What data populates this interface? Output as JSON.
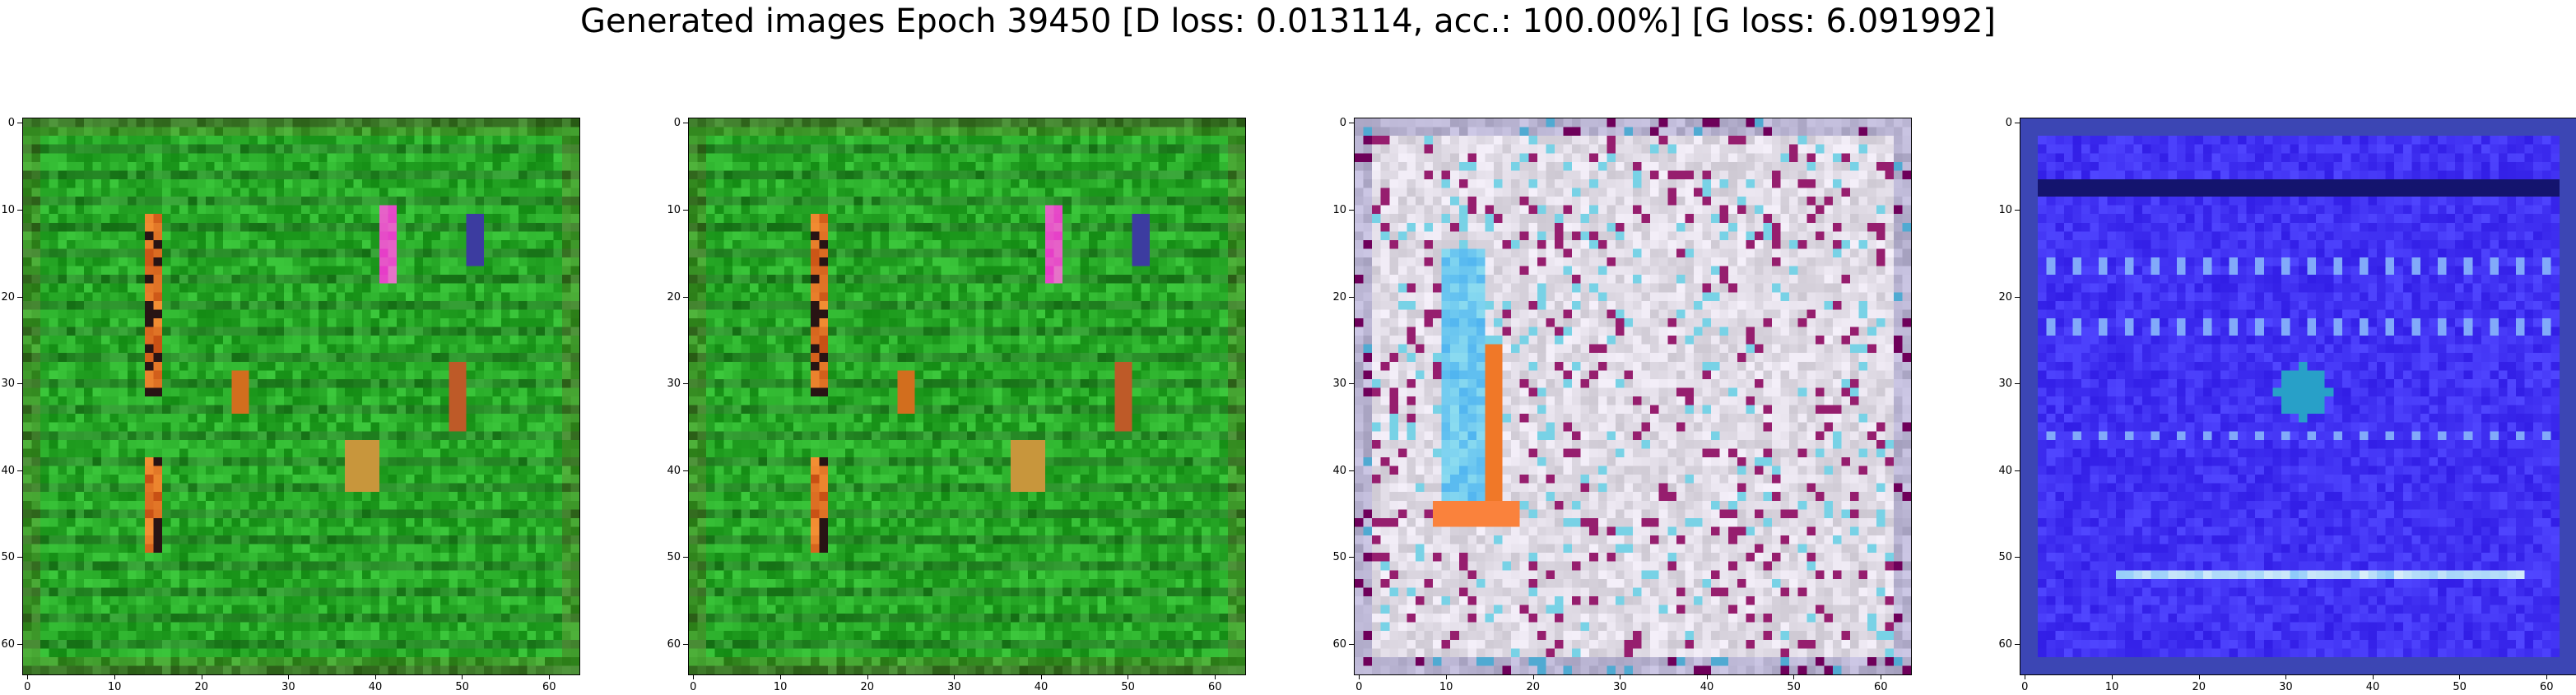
{
  "figure": {
    "title": "Generated images Epoch 39450 [D loss: 0.013114, acc.: 100.00%] [G loss: 6.091992]"
  },
  "chart_data": [
    {
      "type": "heatmap",
      "name": "generated-image-1",
      "dominant_color": "#1a9a1a",
      "xlim": [
        -0.5,
        63.5
      ],
      "ylim": [
        63.5,
        -0.5
      ],
      "xticks": [
        "0",
        "10",
        "20",
        "30",
        "40",
        "50",
        "60"
      ],
      "yticks": [
        "0",
        "10",
        "20",
        "30",
        "40",
        "50",
        "60"
      ]
    },
    {
      "type": "heatmap",
      "name": "generated-image-2",
      "dominant_color": "#1a9a1a",
      "xlim": [
        -0.5,
        63.5
      ],
      "ylim": [
        63.5,
        -0.5
      ],
      "xticks": [
        "0",
        "10",
        "20",
        "30",
        "40",
        "50",
        "60"
      ],
      "yticks": [
        "0",
        "10",
        "20",
        "30",
        "40",
        "50",
        "60"
      ]
    },
    {
      "type": "heatmap",
      "name": "generated-image-3",
      "dominant_color": "#d8d4dc",
      "xlim": [
        -0.5,
        63.5
      ],
      "ylim": [
        63.5,
        -0.5
      ],
      "xticks": [
        "0",
        "10",
        "20",
        "30",
        "40",
        "50",
        "60"
      ],
      "yticks": [
        "0",
        "10",
        "20",
        "30",
        "40",
        "50",
        "60"
      ]
    },
    {
      "type": "heatmap",
      "name": "generated-image-4",
      "dominant_color": "#3a2cf0",
      "xlim": [
        -0.5,
        63.5
      ],
      "ylim": [
        63.5,
        -0.5
      ],
      "xticks": [
        "0",
        "10",
        "20",
        "30",
        "40",
        "50",
        "60"
      ],
      "yticks": [
        "0",
        "10",
        "20",
        "30",
        "40",
        "50",
        "60"
      ]
    }
  ]
}
